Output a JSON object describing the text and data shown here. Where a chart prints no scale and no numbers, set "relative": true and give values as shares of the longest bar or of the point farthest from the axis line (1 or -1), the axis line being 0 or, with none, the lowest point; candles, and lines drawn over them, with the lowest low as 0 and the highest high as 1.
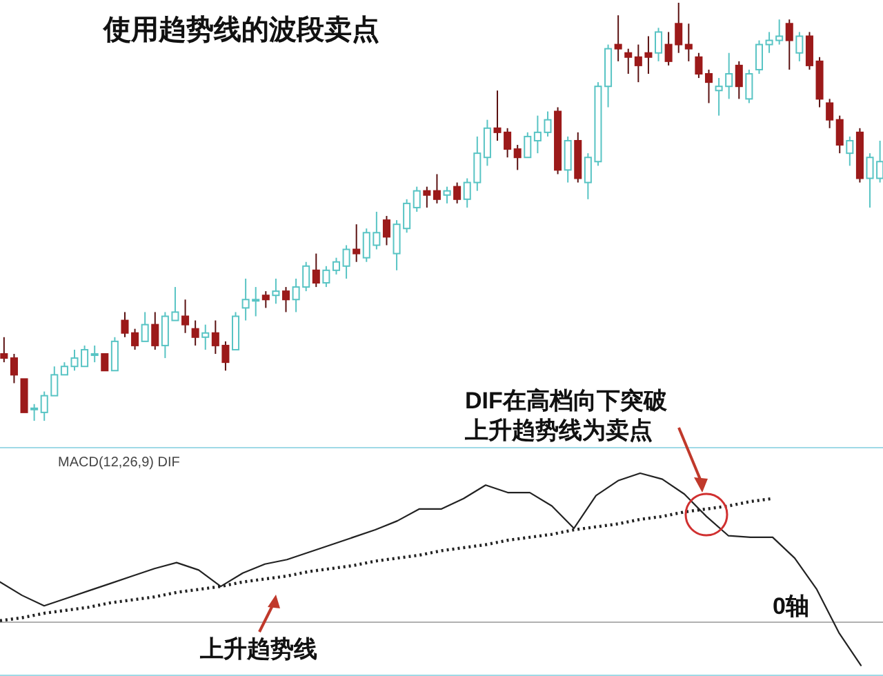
{
  "chart_data": [
    {
      "type": "candlestick",
      "title": "使用趋势线的波段卖点",
      "relative": true,
      "categories": [
        null,
        null,
        null,
        null,
        null,
        null,
        null,
        null,
        null,
        null,
        null,
        null,
        null,
        null,
        null,
        null,
        null,
        null,
        null,
        null,
        null,
        null,
        null,
        null,
        null,
        null,
        null,
        null,
        null,
        null,
        null,
        null,
        null,
        null,
        null,
        null,
        null,
        null,
        null,
        null,
        null,
        null,
        null,
        null,
        null,
        null,
        null,
        null,
        null,
        null,
        null,
        null,
        null,
        null,
        null,
        null,
        null,
        null,
        null,
        null,
        null,
        null,
        null,
        null,
        null,
        null,
        null,
        null,
        null,
        null,
        null,
        null,
        null,
        null,
        null,
        null,
        null,
        null,
        null,
        null,
        null,
        null,
        null,
        null,
        null,
        null,
        null,
        null
      ],
      "ohlc": [
        [
          0.16,
          0.2,
          0.14,
          0.15
        ],
        [
          0.15,
          0.16,
          0.09,
          0.11
        ],
        [
          0.1,
          0.1,
          0.02,
          0.02
        ],
        [
          0.03,
          0.04,
          0,
          0.03
        ],
        [
          0.02,
          0.07,
          0.0,
          0.06
        ],
        [
          0.06,
          0.13,
          0.06,
          0.11
        ],
        [
          0.11,
          0.14,
          0.11,
          0.13
        ],
        [
          0.13,
          0.17,
          0.12,
          0.15
        ],
        [
          0.13,
          0.18,
          0.13,
          0.17
        ],
        [
          0.16,
          0.18,
          0.14,
          0.16
        ],
        [
          0.16,
          0.16,
          0.12,
          0.12
        ],
        [
          0.12,
          0.2,
          0.12,
          0.19
        ],
        [
          0.24,
          0.26,
          0.2,
          0.21
        ],
        [
          0.21,
          0.22,
          0.17,
          0.18
        ],
        [
          0.19,
          0.26,
          0.19,
          0.23
        ],
        [
          0.23,
          0.26,
          0.17,
          0.18
        ],
        [
          0.18,
          0.26,
          0.15,
          0.25
        ],
        [
          0.24,
          0.32,
          0.24,
          0.26
        ],
        [
          0.25,
          0.29,
          0.21,
          0.23
        ],
        [
          0.22,
          0.24,
          0.18,
          0.2
        ],
        [
          0.2,
          0.23,
          0.17,
          0.21
        ],
        [
          0.21,
          0.24,
          0.16,
          0.18
        ],
        [
          0.18,
          0.19,
          0.12,
          0.14
        ],
        [
          0.17,
          0.26,
          0.17,
          0.25
        ],
        [
          0.27,
          0.34,
          0.24,
          0.29
        ],
        [
          0.29,
          0.32,
          0.25,
          0.29
        ],
        [
          0.3,
          0.31,
          0.27,
          0.29
        ],
        [
          0.3,
          0.34,
          0.28,
          0.31
        ],
        [
          0.31,
          0.32,
          0.26,
          0.29
        ],
        [
          0.29,
          0.34,
          0.26,
          0.32
        ],
        [
          0.32,
          0.38,
          0.31,
          0.37
        ],
        [
          0.36,
          0.4,
          0.32,
          0.33
        ],
        [
          0.33,
          0.37,
          0.32,
          0.36
        ],
        [
          0.36,
          0.39,
          0.35,
          0.38
        ],
        [
          0.37,
          0.42,
          0.34,
          0.41
        ],
        [
          0.41,
          0.47,
          0.38,
          0.4
        ],
        [
          0.39,
          0.46,
          0.38,
          0.45
        ],
        [
          0.42,
          0.5,
          0.41,
          0.45
        ],
        [
          0.48,
          0.49,
          0.42,
          0.44
        ],
        [
          0.4,
          0.48,
          0.36,
          0.47
        ],
        [
          0.46,
          0.53,
          0.45,
          0.52
        ],
        [
          0.51,
          0.56,
          0.5,
          0.55
        ],
        [
          0.55,
          0.56,
          0.51,
          0.54
        ],
        [
          0.55,
          0.59,
          0.52,
          0.53
        ],
        [
          0.54,
          0.56,
          0.52,
          0.55
        ],
        [
          0.56,
          0.57,
          0.52,
          0.53
        ],
        [
          0.53,
          0.58,
          0.51,
          0.57
        ],
        [
          0.57,
          0.68,
          0.55,
          0.64
        ],
        [
          0.63,
          0.72,
          0.61,
          0.7
        ],
        [
          0.7,
          0.79,
          0.67,
          0.69
        ],
        [
          0.69,
          0.7,
          0.63,
          0.65
        ],
        [
          0.65,
          0.66,
          0.6,
          0.63
        ],
        [
          0.63,
          0.69,
          0.63,
          0.68
        ],
        [
          0.67,
          0.73,
          0.64,
          0.69
        ],
        [
          0.69,
          0.74,
          0.68,
          0.72
        ],
        [
          0.74,
          0.75,
          0.59,
          0.6
        ],
        [
          0.6,
          0.68,
          0.57,
          0.67
        ],
        [
          0.67,
          0.69,
          0.57,
          0.58
        ],
        [
          0.57,
          0.64,
          0.53,
          0.63
        ],
        [
          0.62,
          0.81,
          0.61,
          0.8
        ],
        [
          0.8,
          0.9,
          0.75,
          0.89
        ],
        [
          0.9,
          0.97,
          0.86,
          0.89
        ],
        [
          0.88,
          0.89,
          0.83,
          0.87
        ],
        [
          0.87,
          0.9,
          0.81,
          0.85
        ],
        [
          0.88,
          0.92,
          0.83,
          0.87
        ],
        [
          0.88,
          0.94,
          0.86,
          0.93
        ],
        [
          0.9,
          0.93,
          0.85,
          0.86
        ],
        [
          0.95,
          1,
          0.88,
          0.9
        ],
        [
          0.9,
          0.95,
          0.86,
          0.89
        ],
        [
          0.87,
          0.88,
          0.82,
          0.83
        ],
        [
          0.83,
          0.84,
          0.76,
          0.81
        ],
        [
          0.79,
          0.82,
          0.73,
          0.8
        ],
        [
          0.8,
          0.88,
          0.77,
          0.83
        ],
        [
          0.85,
          0.86,
          0.77,
          0.8
        ],
        [
          0.77,
          0.84,
          0.76,
          0.83
        ],
        [
          0.84,
          0.91,
          0.83,
          0.9
        ],
        [
          0.9,
          0.93,
          0.88,
          0.91
        ],
        [
          0.91,
          0.96,
          0.9,
          0.92
        ],
        [
          0.95,
          0.96,
          0.84,
          0.91
        ],
        [
          0.88,
          0.93,
          0.86,
          0.92
        ],
        [
          0.92,
          0.93,
          0.84,
          0.85
        ],
        [
          0.86,
          0.87,
          0.75,
          0.77
        ],
        [
          0.76,
          0.77,
          0.7,
          0.72
        ],
        [
          0.72,
          0.73,
          0.64,
          0.66
        ],
        [
          0.64,
          0.68,
          0.61,
          0.67
        ],
        [
          0.69,
          0.7,
          0.57,
          0.58
        ],
        [
          0.58,
          0.64,
          0.51,
          0.63
        ],
        [
          0.58,
          0.67,
          0.57,
          0.62
        ]
      ]
    },
    {
      "type": "line",
      "title": "MACD(12,26,9)  DIF",
      "relative": true,
      "categories": [
        null,
        null,
        null,
        null,
        null,
        null,
        null,
        null,
        null,
        null,
        null,
        null,
        null,
        null,
        null,
        null,
        null,
        null,
        null,
        null,
        null,
        null,
        null,
        null,
        null,
        null,
        null,
        null,
        null,
        null,
        null,
        null,
        null,
        null,
        null,
        null,
        null,
        null,
        null,
        null
      ],
      "series": [
        {
          "color": "#222222",
          "values": [
            0.27,
            0.18,
            0.11,
            0.16,
            0.21,
            0.26,
            0.31,
            0.36,
            0.4,
            0.35,
            0.24,
            0.33,
            0.39,
            0.42,
            0.47,
            0.52,
            0.57,
            0.62,
            0.68,
            0.76,
            0.76,
            0.83,
            0.92,
            0.87,
            0.87,
            0.78,
            0.63,
            0.85,
            0.95,
            1,
            0.96,
            0.86,
            0.71,
            0.58,
            0.57,
            0.57,
            0.43,
            0.22,
            -0.07,
            -0.29
          ]
        },
        {
          "color": "#222222",
          "line_style": "dotted",
          "values": [
            0.01,
            0.03,
            0.06,
            0.08,
            0.1,
            0.13,
            0.15,
            0.17,
            0.2,
            0.22,
            0.24,
            0.27,
            0.29,
            0.31,
            0.34,
            0.36,
            0.38,
            0.41,
            0.43,
            0.45,
            0.48,
            0.5,
            0.52,
            0.55,
            0.57,
            0.59,
            0.62,
            0.64,
            0.66,
            0.69,
            0.71,
            0.74,
            0.76,
            0.78,
            0.81,
            0.83,
            null,
            null,
            null,
            null
          ]
        }
      ],
      "ref_lines": [
        {
          "axis": "y",
          "value": 0,
          "label": "0轴",
          "color": "#b0b0b0"
        }
      ],
      "annotations": [
        "DIF在高档向下突破上升趋势线为卖点",
        "上升趋势线"
      ]
    }
  ]
}
